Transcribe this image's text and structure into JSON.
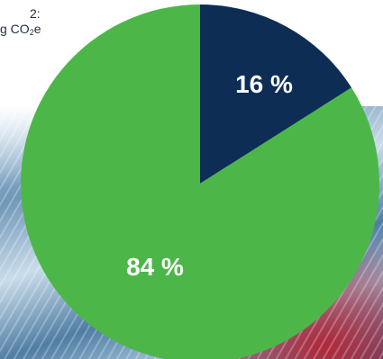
{
  "caption": {
    "line1": "2:",
    "line2_prefix": "g CO",
    "line2_sub": "2",
    "line2_suffix": "e"
  },
  "chart_data": {
    "type": "pie",
    "slices": [
      {
        "label": "16 %",
        "value": 16,
        "color": "#0d2d55"
      },
      {
        "label": "84 %",
        "value": 84,
        "color": "#4cb748"
      }
    ]
  }
}
